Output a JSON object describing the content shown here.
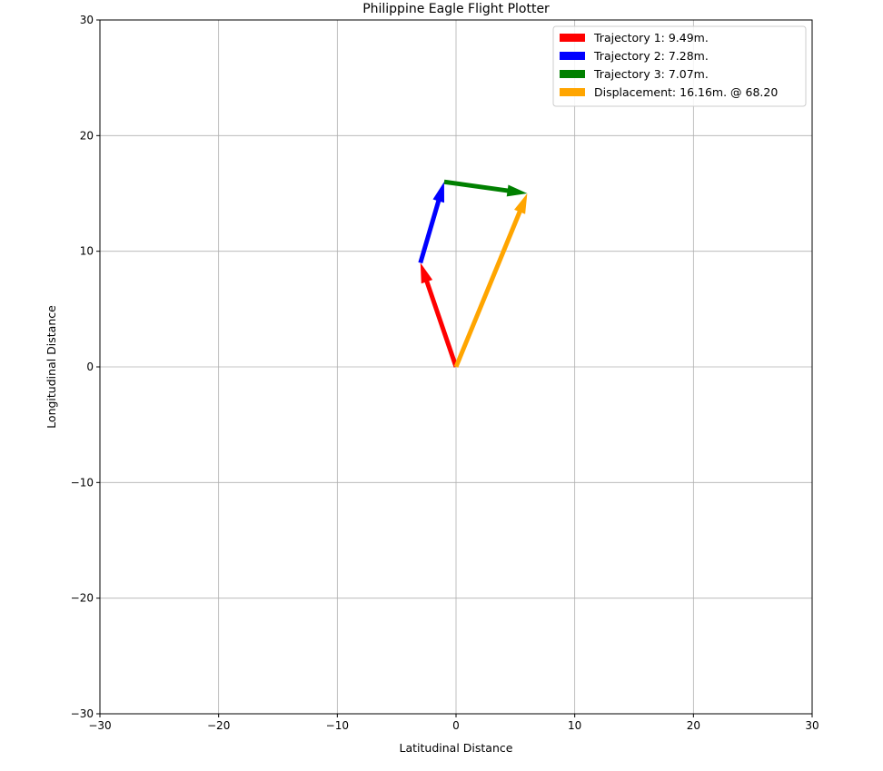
{
  "chart_data": {
    "type": "quiver",
    "title": "Philippine Eagle Flight Plotter",
    "xlabel": "Latitudinal Distance",
    "ylabel": "Longitudinal Distance",
    "xlim": [
      -30,
      30
    ],
    "ylim": [
      -30,
      30
    ],
    "xticks": [
      -30,
      -20,
      -10,
      0,
      10,
      20,
      30
    ],
    "yticks": [
      -30,
      -20,
      -10,
      0,
      10,
      20,
      30
    ],
    "xtick_labels": [
      "−30",
      "−20",
      "−10",
      "0",
      "10",
      "20",
      "30"
    ],
    "ytick_labels": [
      "−30",
      "−20",
      "−10",
      "0",
      "10",
      "20",
      "30"
    ],
    "grid": true,
    "legend_position": "upper-right",
    "series": [
      {
        "name": "Trajectory 1: 9.49m.",
        "color": "#ff0000",
        "start": [
          0,
          0
        ],
        "end": [
          -3,
          9
        ]
      },
      {
        "name": "Trajectory 2: 7.28m.",
        "color": "#0000ff",
        "start": [
          -3,
          9
        ],
        "end": [
          -1,
          16
        ]
      },
      {
        "name": "Trajectory 3: 7.07m.",
        "color": "#008000",
        "start": [
          -1,
          16
        ],
        "end": [
          6,
          15
        ]
      },
      {
        "name": "Displacement: 16.16m. @ 68.20",
        "color": "#ffa500",
        "start": [
          0,
          0
        ],
        "end": [
          6,
          15
        ]
      }
    ]
  }
}
